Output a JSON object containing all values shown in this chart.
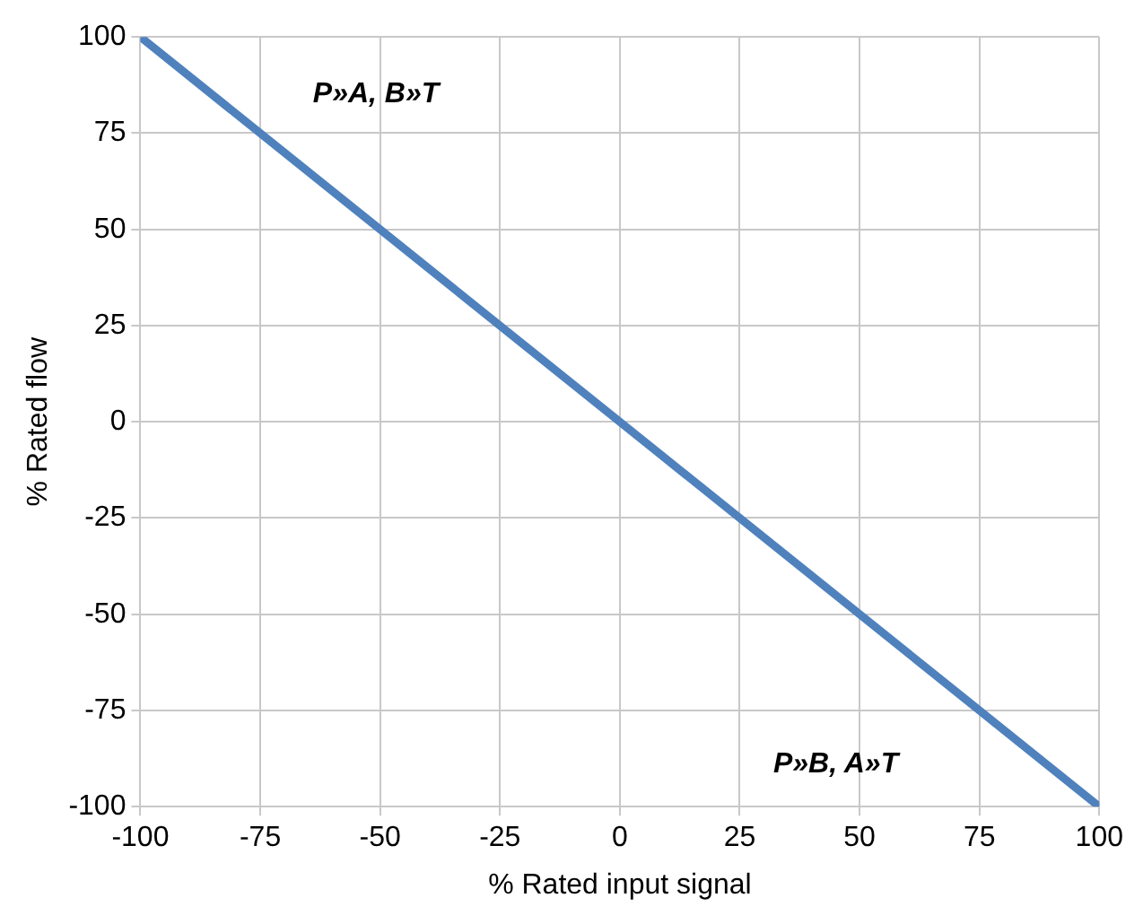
{
  "chart_data": {
    "type": "line",
    "xlabel": "% Rated input signal",
    "ylabel": "% Rated flow",
    "x": [
      -100,
      100
    ],
    "series": [
      {
        "color": "#4f81bd",
        "values": [
          100,
          -100
        ]
      }
    ],
    "xlim": [
      -100,
      100
    ],
    "xticks": [
      -100,
      -75,
      -50,
      -25,
      0,
      25,
      50,
      75,
      100
    ],
    "ylim": [
      -100,
      100
    ],
    "yticks": [
      -100,
      -75,
      -50,
      -25,
      0,
      25,
      50,
      75,
      100
    ],
    "grid": true,
    "marker": "none",
    "line_style": "solid",
    "annotations": [
      "P»A, B»T",
      "P»B, A»T"
    ]
  }
}
